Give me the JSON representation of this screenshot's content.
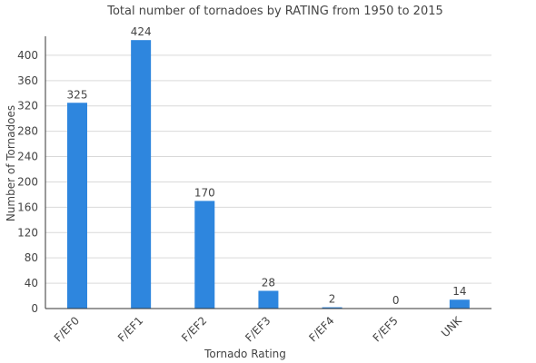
{
  "chart_data": {
    "type": "bar",
    "title": "Total number of tornadoes by RATING from 1950 to 2015",
    "xlabel": "Tornado Rating",
    "ylabel": "Number of Tornadoes",
    "categories": [
      "F/EF0",
      "F/EF1",
      "F/EF2",
      "F/EF3",
      "F/EF4",
      "F/EF5",
      "UNK"
    ],
    "values": [
      325,
      424,
      170,
      28,
      2,
      0,
      14
    ],
    "data_labels": [
      "325",
      "424",
      "170",
      "28",
      "2",
      "0",
      "14"
    ],
    "yticks": [
      0,
      40,
      80,
      120,
      160,
      200,
      240,
      280,
      320,
      360,
      400
    ],
    "ylim": [
      0,
      430
    ],
    "grid": true,
    "legend": "none",
    "bar_color": "#2e86de"
  }
}
